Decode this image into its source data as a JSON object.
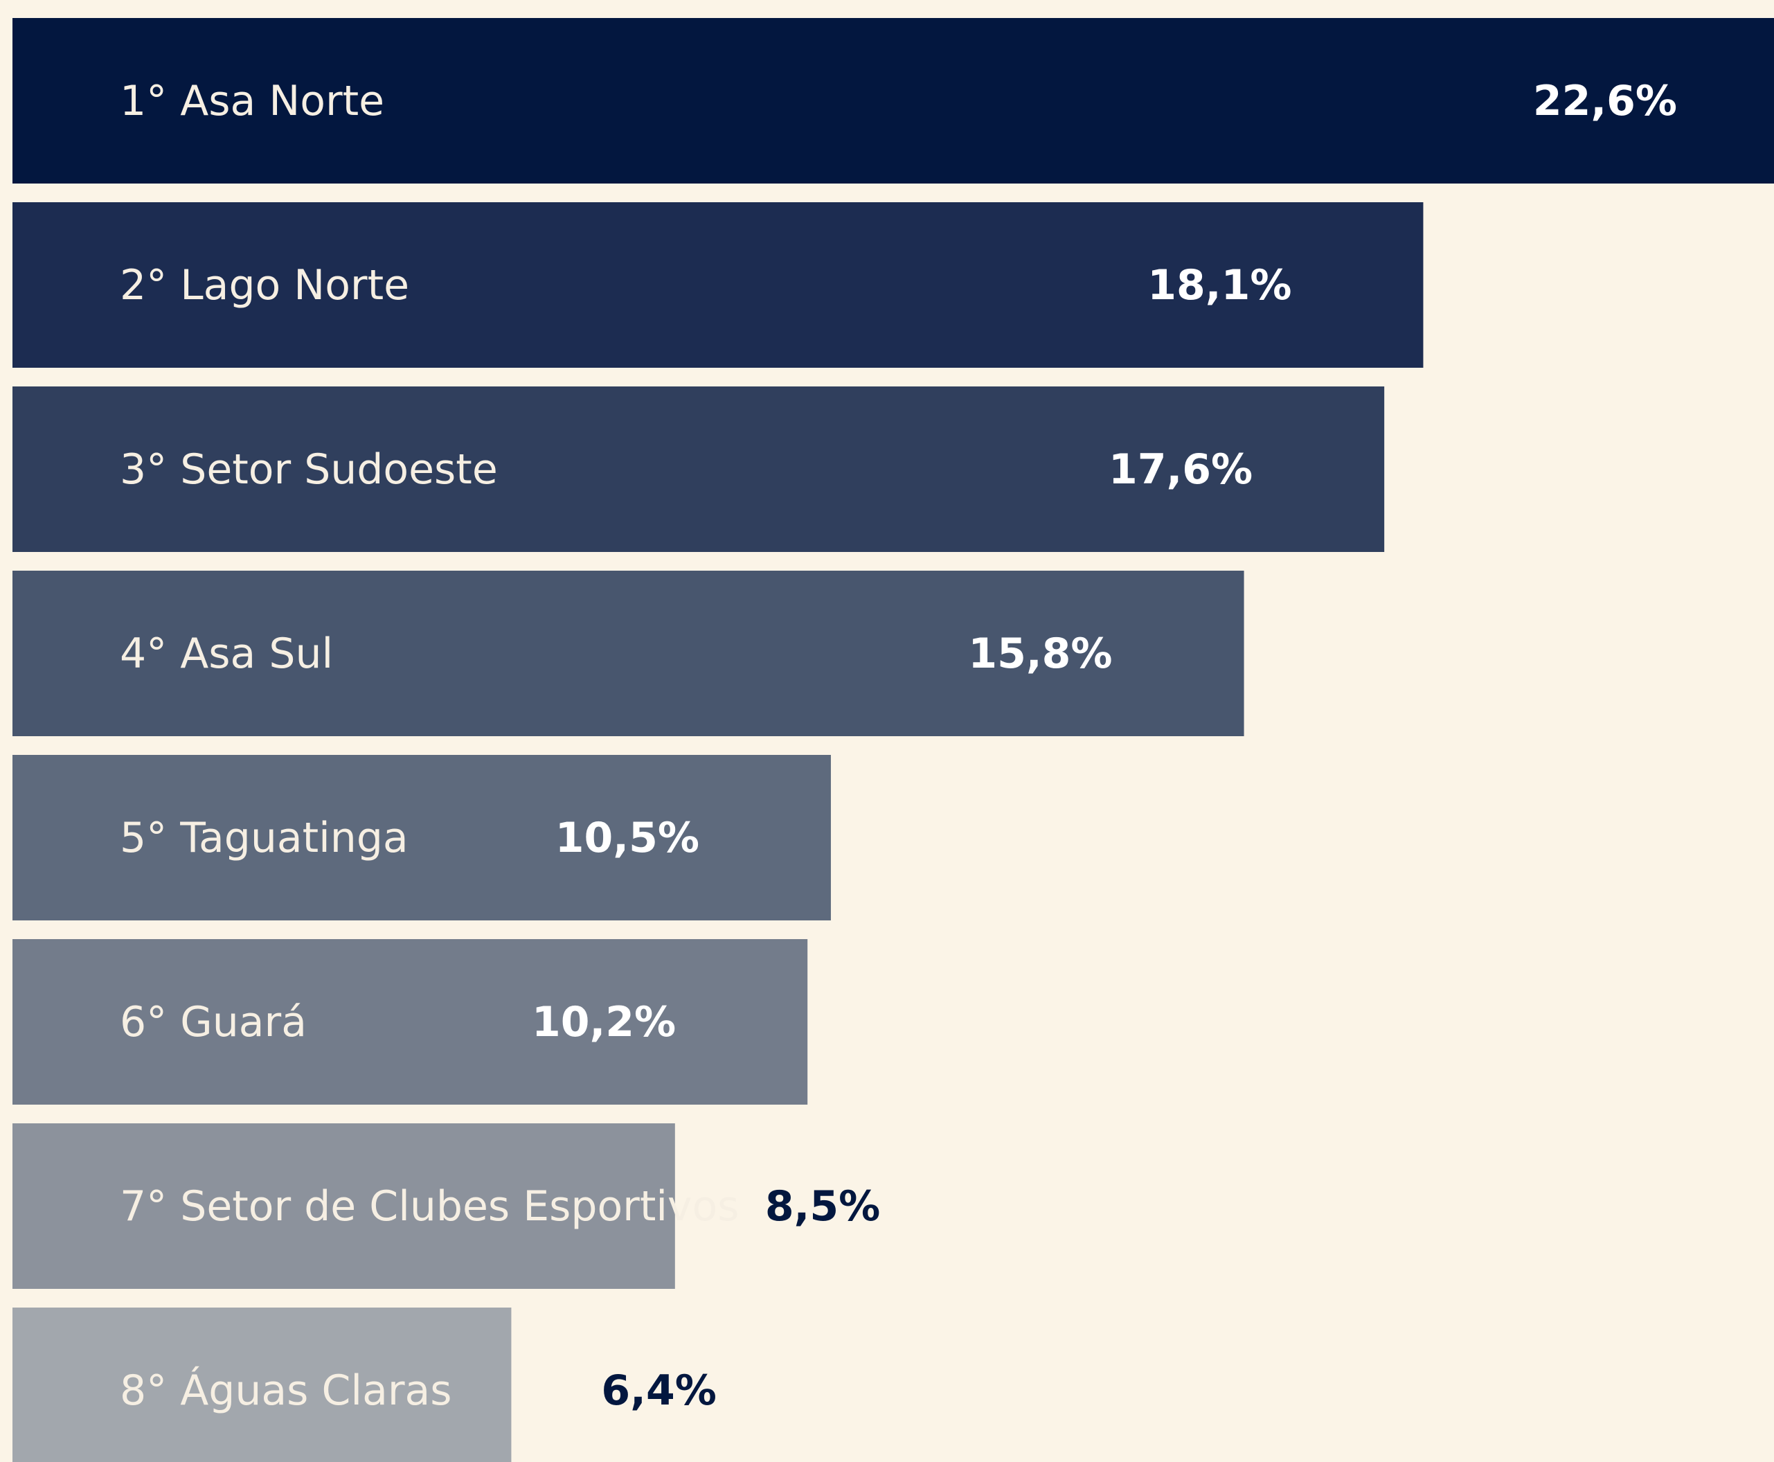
{
  "chart_data": {
    "type": "bar",
    "orientation": "horizontal",
    "categories": [
      "1° Asa Norte",
      "2° Lago Norte",
      "3° Setor Sudoeste",
      "4° Asa Sul",
      "5° Taguatinga",
      "6° Guará",
      "7° Setor de Clubes Esportivos",
      "8° Águas Claras"
    ],
    "values": [
      22.6,
      18.1,
      17.6,
      15.8,
      10.5,
      10.2,
      8.5,
      6.4
    ],
    "value_labels": [
      "22,6%",
      "18,1%",
      "17,6%",
      "15,8%",
      "10,5%",
      "10,2%",
      "8,5%",
      "6,4%"
    ],
    "colors": [
      "#03173f",
      "#1c2c51",
      "#303f5d",
      "#48566e",
      "#5e6a7d",
      "#737c8b",
      "#8c929c",
      "#a2a7ad"
    ]
  }
}
